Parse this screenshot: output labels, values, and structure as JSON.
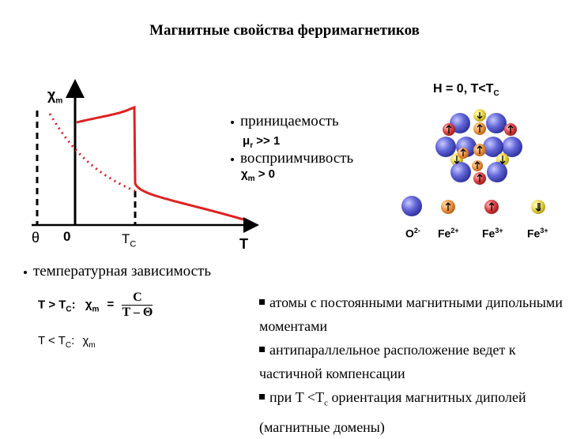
{
  "title": "Магнитные свойства ферримагнетиков",
  "graph": {
    "y_axis_label": "χ",
    "y_axis_sub": "m",
    "x_axis_label": "T",
    "theta_label": "θ",
    "zero_label": "0",
    "tc_label": "T",
    "tc_sub": "C"
  },
  "properties": {
    "permeability": "приницаемость",
    "mu": "μ",
    "mu_sub": "r",
    "mu_value": ">> 1",
    "susceptibility": "восприимчивость",
    "chi": "χ",
    "chi_sub": "m",
    "chi_value": "> 0"
  },
  "lattice": {
    "header": "H = 0, T<T",
    "header_sub": "C",
    "legend": [
      {
        "label": "O",
        "sup": "2-"
      },
      {
        "label": "Fe",
        "sup": "2+"
      },
      {
        "label": "Fe",
        "sup": "3+"
      },
      {
        "label": "Fe",
        "sup": "3+"
      }
    ],
    "colors": {
      "oxygen": "#5b5fd1",
      "fe2": "#f0a15a",
      "fe3_up": "#e0474c",
      "fe3_down": "#f1e05a"
    }
  },
  "temperature": {
    "heading": "температурная зависимость",
    "high_lhs": "T > T",
    "high_sub": "C",
    "high_colon": ":",
    "chi": "χ",
    "chi_sub": "m",
    "equals": "=",
    "numerator": "C",
    "denominator": "T – Θ",
    "low_lhs": "T < T",
    "low_sub": "C",
    "low_colon": ":",
    "low_chi": "χ",
    "low_chi_sub": "m"
  },
  "notes": [
    "атомы с постоянными магнитными дипольными моментами",
    "антипараллельное расположение ведет к частичной компенсации"
  ],
  "note3": {
    "prefix": "при T <T",
    "sub": "c",
    "suffix": " ориентация магнитных диполей (магнитные домены)"
  }
}
